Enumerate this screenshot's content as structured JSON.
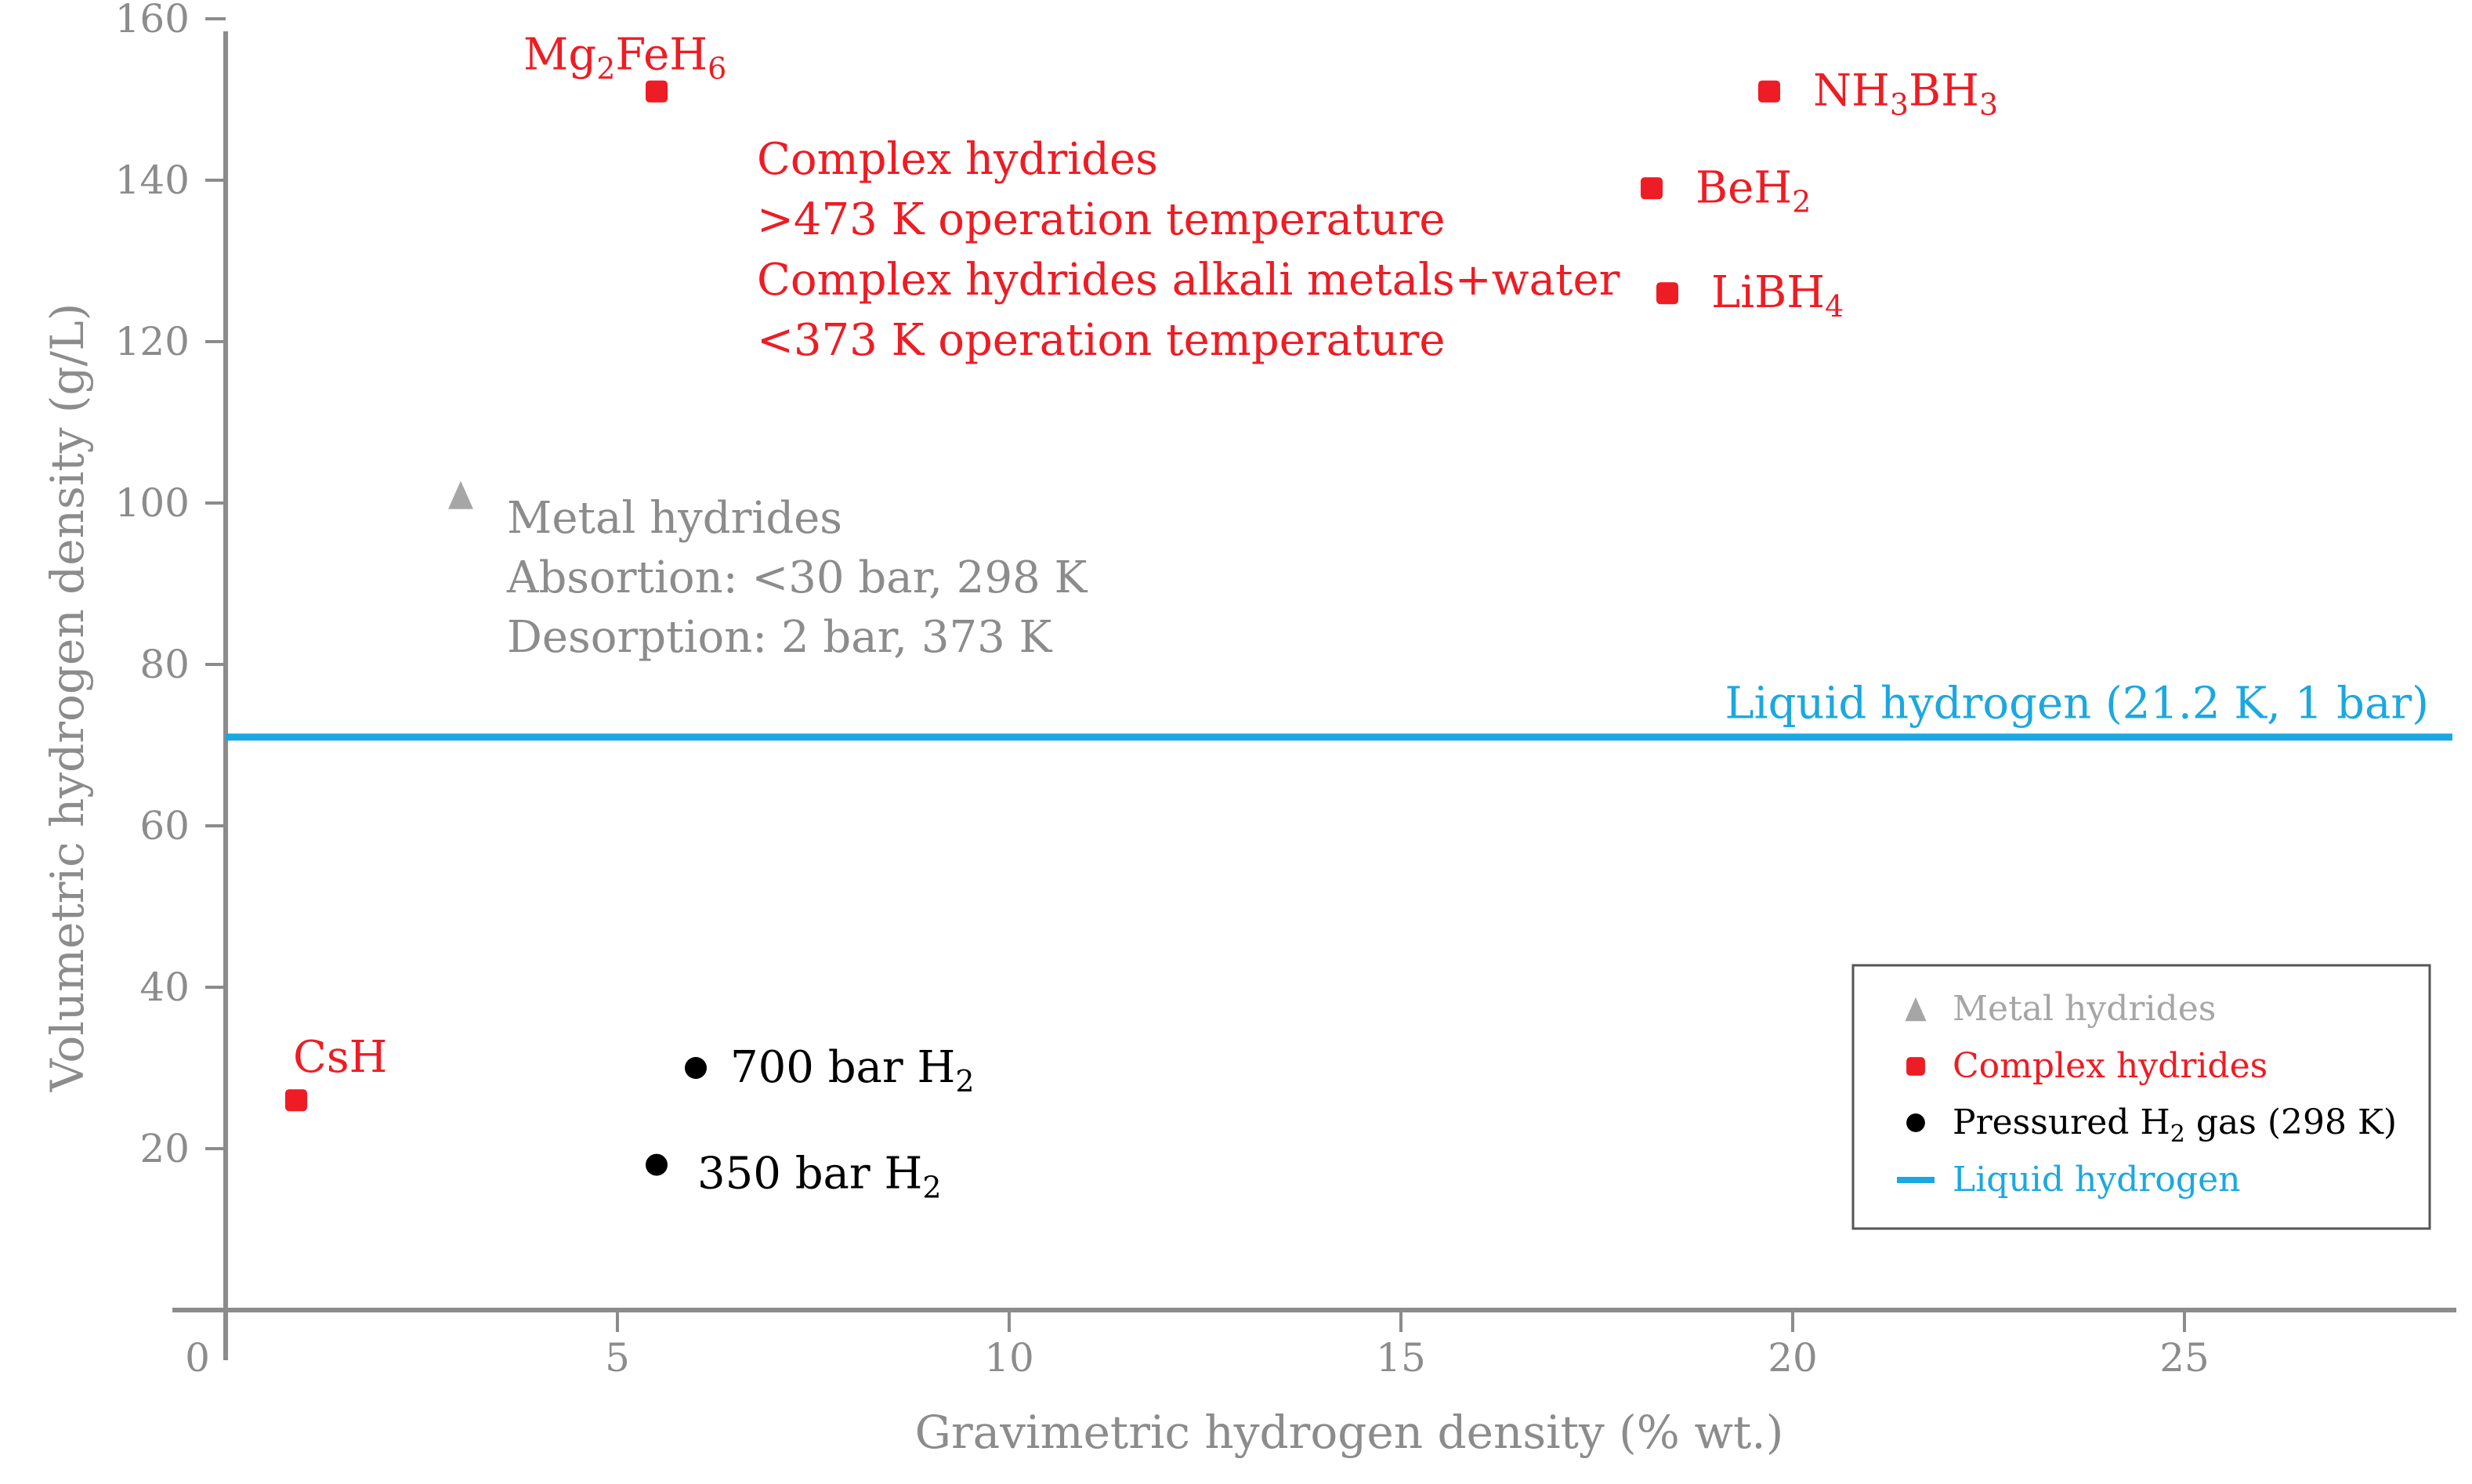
{
  "chart_data": {
    "type": "scatter",
    "xlabel": "Gravimetric hydrogen density (% wt.)",
    "ylabel": "Volumetric hydrogen density (g/L)",
    "xlim": [
      0,
      28
    ],
    "ylim": [
      0,
      165
    ],
    "x_ticks": [
      0,
      5,
      10,
      15,
      20,
      25
    ],
    "y_ticks": [
      20,
      40,
      60,
      80,
      100,
      120,
      140,
      160
    ],
    "grid": false,
    "legend_position": "bottom-right",
    "colors": {
      "axis": "#8c8c8c",
      "metal_hydrides": "#a6a6a6",
      "complex_hydrides": "#ee1c24",
      "pressured_gas": "#000000",
      "liquid_hydrogen": "#1ba8e0"
    },
    "series": [
      {
        "name": "Metal hydrides",
        "marker": "triangle",
        "color": "#a6a6a6",
        "points": [
          {
            "x": 3.0,
            "y": 101
          }
        ]
      },
      {
        "name": "Complex hydrides",
        "marker": "square",
        "color": "#ee1c24",
        "points": [
          {
            "label": "Mg2FeH6",
            "label_main": "Mg",
            "label_sub1": "2",
            "label_mid": "FeH",
            "label_sub2": "6",
            "x": 5.5,
            "y": 151
          },
          {
            "label": "NH3BH3",
            "label_main": "NH",
            "label_sub1": "3",
            "label_mid": "BH",
            "label_sub2": "3",
            "x": 19.7,
            "y": 151
          },
          {
            "label": "BeH2",
            "label_main": "BeH",
            "label_sub1": "2",
            "label_mid": "",
            "label_sub2": "",
            "x": 18.2,
            "y": 139
          },
          {
            "label": "LiBH4",
            "label_main": "LiBH",
            "label_sub1": "4",
            "label_mid": "",
            "label_sub2": "",
            "x": 18.4,
            "y": 126
          },
          {
            "label": "CsH",
            "label_main": "CsH",
            "label_sub1": "",
            "label_mid": "",
            "label_sub2": "",
            "x": 0.9,
            "y": 26
          }
        ]
      },
      {
        "name": "Pressured H2 gas (298 K)",
        "marker": "circle",
        "color": "#000000",
        "points": [
          {
            "label": "700 bar H2",
            "label_main": "700 bar H",
            "label_sub1": "2",
            "x": 6.0,
            "y": 30
          },
          {
            "label": "350 bar H2",
            "label_main": "350 bar H",
            "label_sub1": "2",
            "x": 5.5,
            "y": 18
          }
        ]
      },
      {
        "name": "Liquid hydrogen",
        "type": "hline",
        "color": "#1ba8e0",
        "y": 71,
        "label": "Liquid hydrogen (21.2 K, 1 bar)"
      }
    ],
    "annotations": {
      "complex_hydrides": [
        "Complex hydrides",
        ">473 K operation temperature",
        "Complex hydrides alkali metals+water",
        "<373 K operation temperature"
      ],
      "metal_hydrides": [
        "Metal hydrides",
        "Absortion: <30 bar, 298 K",
        "Desorption: 2 bar, 373 K"
      ]
    },
    "legend": [
      {
        "text": "Metal hydrides",
        "marker": "triangle",
        "color": "#a6a6a6"
      },
      {
        "text": "Complex hydrides",
        "marker": "square",
        "color": "#ee1c24"
      },
      {
        "text_main": "Pressured H",
        "text_sub": "2",
        "text_rest": " gas (298 K)",
        "marker": "circle",
        "color": "#000000"
      },
      {
        "text": "Liquid hydrogen",
        "marker": "line",
        "color": "#1ba8e0"
      }
    ]
  }
}
